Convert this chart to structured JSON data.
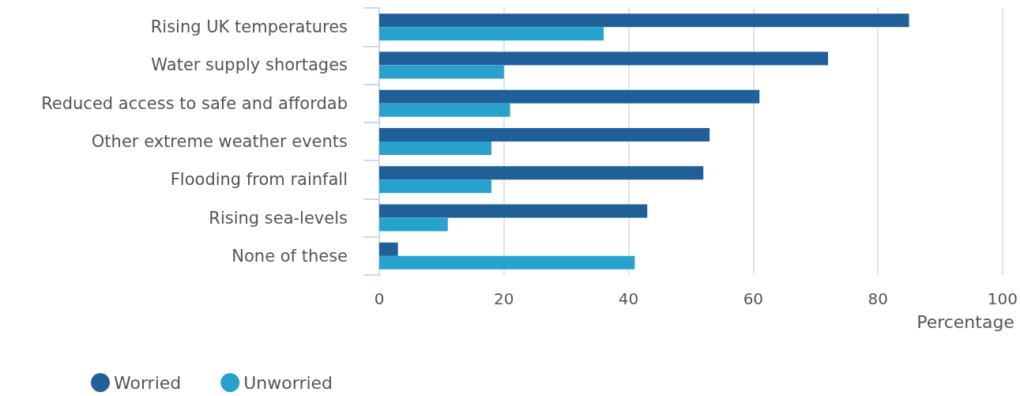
{
  "chart_data": {
    "type": "bar",
    "orientation": "horizontal",
    "xlabel": "Percentage",
    "categories": [
      "Rising UK temperatures",
      "Water supply shortages",
      "Reduced access to safe and affordab",
      "Other extreme weather events",
      "Flooding from rainfall",
      "Rising sea-levels",
      "None of these"
    ],
    "series": [
      {
        "name": "Worried",
        "color": "#215f99",
        "values": [
          85,
          72,
          61,
          53,
          52,
          43,
          3
        ]
      },
      {
        "name": "Unworried",
        "color": "#28a2cd",
        "values": [
          36,
          20,
          21,
          18,
          18,
          11,
          41
        ]
      }
    ],
    "xlim": [
      0,
      100
    ],
    "xticks": [
      0,
      20,
      40,
      60,
      80,
      100
    ],
    "grid": "x",
    "legend": "bottom left"
  }
}
